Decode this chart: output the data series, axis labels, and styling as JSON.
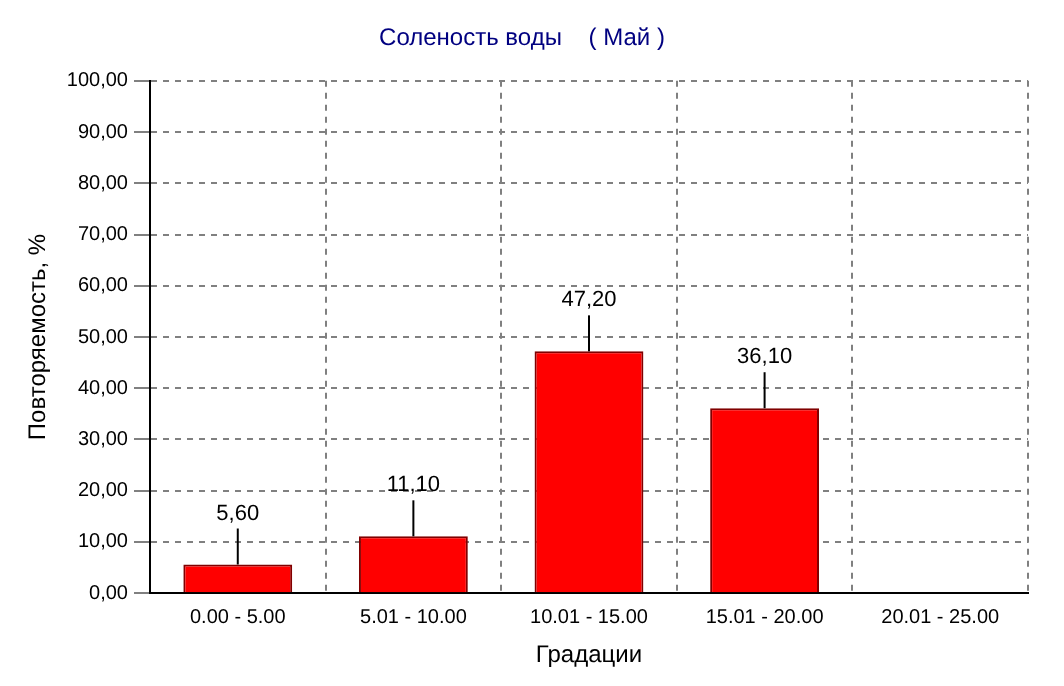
{
  "chart_data": {
    "type": "bar",
    "title": "Соленость воды    ( Май )",
    "xlabel": "Градации",
    "ylabel": "Повторяемость, %",
    "categories": [
      "0.00 - 5.00",
      "5.01 - 10.00",
      "10.01 - 15.00",
      "15.01 - 20.00",
      "20.01 - 25.00"
    ],
    "values": [
      5.6,
      11.1,
      47.2,
      36.1,
      null
    ],
    "value_labels": [
      "5,60",
      "11,10",
      "47,20",
      "36,10",
      null
    ],
    "color": "#ff0000",
    "ylim": [
      0,
      100
    ],
    "yticks": [
      {
        "value": 0,
        "label": "0,00"
      },
      {
        "value": 10,
        "label": "10,00"
      },
      {
        "value": 20,
        "label": "20,00"
      },
      {
        "value": 30,
        "label": "30,00"
      },
      {
        "value": 40,
        "label": "40,00"
      },
      {
        "value": 50,
        "label": "50,00"
      },
      {
        "value": 60,
        "label": "60,00"
      },
      {
        "value": 70,
        "label": "70,00"
      },
      {
        "value": 80,
        "label": "80,00"
      },
      {
        "value": 90,
        "label": "90,00"
      },
      {
        "value": 100,
        "label": "100,00"
      }
    ],
    "grid": true,
    "legend": false
  }
}
